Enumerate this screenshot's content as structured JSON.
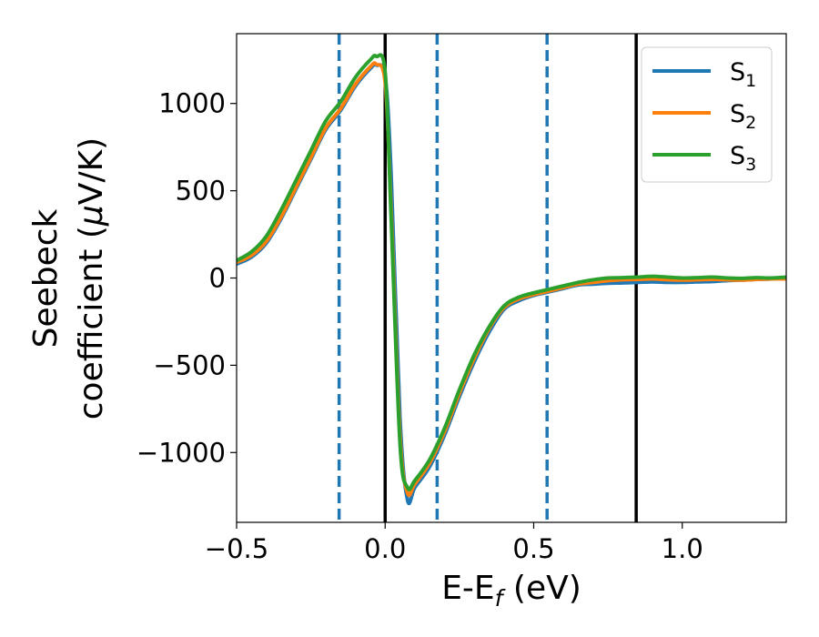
{
  "chart_data": {
    "type": "line",
    "xlabel": "E-E",
    "xlabel_sub": "f",
    "xlabel_unit": " (eV)",
    "ylabel_line1": "Seebeck",
    "ylabel_line2": "coefficient  (",
    "ylabel_mu": "μ",
    "ylabel_unit": "V/K)",
    "xlim": [
      -0.5,
      1.35
    ],
    "ylim": [
      -1400,
      1400
    ],
    "xticks": [
      -0.5,
      0.0,
      0.5,
      1.0
    ],
    "xtick_labels": [
      "−0.5",
      "0.0",
      "0.5",
      "1.0"
    ],
    "yticks": [
      -1000,
      -500,
      0,
      500,
      1000
    ],
    "ytick_labels": [
      "−1000",
      "−500",
      "0",
      "500",
      "1000"
    ],
    "vlines_solid": [
      0.0,
      0.845
    ],
    "vlines_dashed": [
      -0.155,
      0.175,
      0.545
    ],
    "vline_solid_color": "#000000",
    "vline_dashed_color": "#1f77b4",
    "legend_position": "top-right",
    "x": [
      -0.5,
      -0.45,
      -0.4,
      -0.35,
      -0.3,
      -0.25,
      -0.2,
      -0.15,
      -0.1,
      -0.05,
      -0.03,
      0.0,
      0.02,
      0.05,
      0.075,
      0.1,
      0.15,
      0.2,
      0.25,
      0.3,
      0.35,
      0.4,
      0.45,
      0.5,
      0.55,
      0.6,
      0.65,
      0.7,
      0.75,
      0.8,
      0.85,
      0.9,
      0.95,
      1.0,
      1.05,
      1.1,
      1.15,
      1.2,
      1.25,
      1.3,
      1.35
    ],
    "series": [
      {
        "name_base": "S",
        "name_sub": "1",
        "color": "#1f77b4",
        "values": [
          80,
          120,
          200,
          340,
          510,
          680,
          850,
          960,
          1100,
          1200,
          1220,
          1150,
          600,
          -800,
          -1270,
          -1200,
          -1080,
          -900,
          -680,
          -480,
          -310,
          -180,
          -130,
          -100,
          -80,
          -60,
          -40,
          -35,
          -30,
          -28,
          -25,
          -22,
          -25,
          -25,
          -22,
          -20,
          -15,
          -12,
          -8,
          -5,
          0
        ]
      },
      {
        "name_base": "S",
        "name_sub": "2",
        "color": "#ff7f0e",
        "values": [
          90,
          130,
          210,
          350,
          520,
          690,
          860,
          970,
          1110,
          1210,
          1225,
          1120,
          400,
          -900,
          -1230,
          -1180,
          -1060,
          -880,
          -660,
          -460,
          -290,
          -170,
          -120,
          -95,
          -75,
          -55,
          -35,
          -25,
          -15,
          -10,
          -8,
          -5,
          -10,
          -12,
          -10,
          -8,
          -10,
          -12,
          -8,
          -5,
          -5
        ]
      },
      {
        "name_base": "S",
        "name_sub": "3",
        "color": "#2ca02c",
        "values": [
          100,
          150,
          240,
          390,
          560,
          730,
          900,
          1010,
          1150,
          1250,
          1270,
          1180,
          350,
          -950,
          -1200,
          -1160,
          -1040,
          -860,
          -640,
          -440,
          -280,
          -160,
          -110,
          -85,
          -65,
          -45,
          -25,
          -10,
          0,
          2,
          5,
          10,
          5,
          0,
          2,
          5,
          0,
          -2,
          2,
          0,
          5
        ]
      }
    ]
  }
}
